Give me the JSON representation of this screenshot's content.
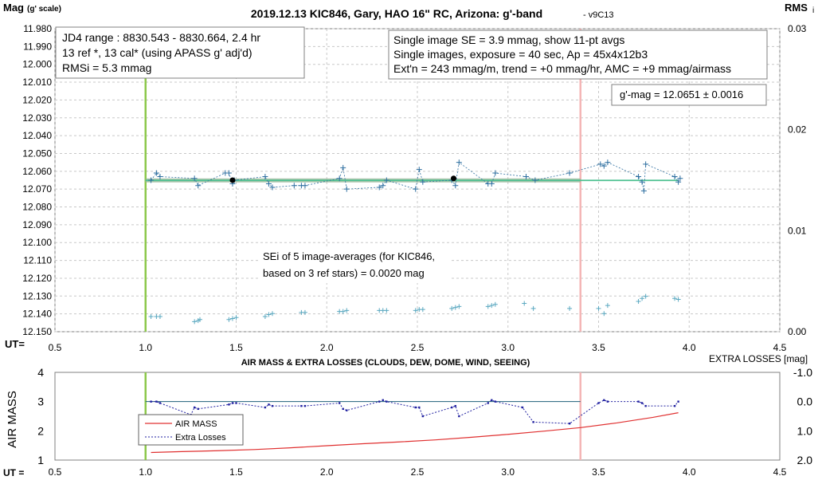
{
  "chart_data": [
    {
      "type": "scatter",
      "title": "2019.12.13 KIC846, Gary, HAO 16\" RC, Arizona: g'-band",
      "title_suffix": "- v9C13",
      "ylabel_left": "Mag",
      "ylabel_left_sub": "(g' scale)",
      "ylabel_right": "RMS",
      "ylabel_right_sub": "i",
      "xlabel": "UT=",
      "xlim": [
        0.5,
        4.5
      ],
      "x_ticks": [
        "0.5",
        "1.0",
        "1.5",
        "2.0",
        "2.5",
        "3.0",
        "3.5",
        "4.0",
        "4.5"
      ],
      "ylim": [
        12.15,
        11.98
      ],
      "y_ticks": [
        "11.980",
        "11.990",
        "12.000",
        "12.010",
        "12.020",
        "12.030",
        "12.040",
        "12.050",
        "12.060",
        "12.070",
        "12.080",
        "12.090",
        "12.100",
        "12.110",
        "12.120",
        "12.130",
        "12.140",
        "12.150"
      ],
      "y2lim": [
        0.0,
        0.03
      ],
      "y2_ticks": [
        "0.00",
        "0.01",
        "0.02",
        "0.03"
      ],
      "grid": true,
      "vertical_lines": [
        {
          "x": 1.0,
          "color": "#8cc84b"
        },
        {
          "x": 3.4,
          "color": "#f4b6b6"
        }
      ],
      "fit_line": {
        "x": [
          1.0,
          3.4
        ],
        "y": [
          12.0651,
          12.0651
        ],
        "color": "#9ab89a"
      },
      "mean_line": {
        "x": [
          1.0,
          3.94
        ],
        "y": [
          12.0651,
          12.0651
        ],
        "color": "#4cc090"
      },
      "series": [
        {
          "label": "single images",
          "color": "#2e6fa0",
          "x": [
            1.03,
            1.06,
            1.08,
            1.27,
            1.29,
            1.44,
            1.46,
            1.48,
            1.49,
            1.66,
            1.68,
            1.7,
            1.82,
            1.86,
            1.88,
            2.07,
            2.09,
            2.11,
            2.29,
            2.31,
            2.33,
            2.49,
            2.51,
            2.53,
            2.69,
            2.71,
            2.73,
            2.89,
            2.91,
            2.93,
            3.1,
            3.15,
            3.34,
            3.51,
            3.53,
            3.55,
            3.72,
            3.74,
            3.75,
            3.76,
            3.92,
            3.94,
            3.95
          ],
          "y": [
            12.065,
            12.061,
            12.063,
            12.064,
            12.068,
            12.061,
            12.061,
            12.067,
            12.065,
            12.063,
            12.067,
            12.069,
            12.068,
            12.068,
            12.068,
            12.064,
            12.058,
            12.07,
            12.069,
            12.068,
            12.065,
            12.07,
            12.059,
            12.066,
            12.065,
            12.068,
            12.055,
            12.067,
            12.067,
            12.061,
            12.063,
            12.065,
            12.061,
            12.056,
            12.057,
            12.055,
            12.063,
            12.066,
            12.071,
            12.056,
            12.063,
            12.066,
            12.064
          ]
        },
        {
          "label": "11-pt avgs",
          "color": "#000000",
          "x": [
            1.48,
            2.7
          ],
          "y": [
            12.065,
            12.064
          ]
        },
        {
          "label": "RMSi",
          "color": "#5aa8c0",
          "axis": "right",
          "x": [
            1.03,
            1.06,
            1.08,
            1.27,
            1.29,
            1.3,
            1.46,
            1.48,
            1.5,
            1.66,
            1.68,
            1.7,
            1.86,
            1.88,
            2.07,
            2.09,
            2.11,
            2.29,
            2.31,
            2.33,
            2.49,
            2.51,
            2.53,
            2.69,
            2.71,
            2.73,
            2.89,
            2.91,
            2.93,
            3.09,
            3.14,
            3.34,
            3.5,
            3.53,
            3.55,
            3.72,
            3.74,
            3.76,
            3.92,
            3.94
          ],
          "y": [
            0.0015,
            0.0015,
            0.0015,
            0.001,
            0.0011,
            0.0012,
            0.0012,
            0.0013,
            0.0014,
            0.0015,
            0.0017,
            0.0018,
            0.0019,
            0.0019,
            0.002,
            0.002,
            0.0021,
            0.0021,
            0.0021,
            0.0021,
            0.0021,
            0.0022,
            0.0022,
            0.0023,
            0.0024,
            0.0025,
            0.0025,
            0.0026,
            0.0027,
            0.0028,
            0.0023,
            0.0023,
            0.0023,
            0.0018,
            0.0026,
            0.003,
            0.0033,
            0.0035,
            0.0033,
            0.0032
          ]
        }
      ],
      "annotations": {
        "jd4": [
          "JD4 range : 8830.543 - 8830.664,  2.4  hr",
          "13 ref *, 13 cal* (using APASS g' adj'd)",
          "RMSi = 5.3 mmag"
        ],
        "se": [
          "Single image SE = 3.9 mmag, show  11-pt avgs",
          "Single images, exposure = 40 sec, Ap = 45x4x12b3",
          "Ext'n = 243 mmag/m, trend =  +0 mmag/hr, AMC = +9 mmag/airmass"
        ],
        "gmag": "g'-mag = 12.0651 ± 0.0016",
        "sei": [
          "SEi of 5 image-averages (for KIC846,",
          "based on 3 ref stars) = 0.0020 mag"
        ]
      }
    },
    {
      "type": "line",
      "title": "AIR MASS & EXTRA LOSSES (CLOUDS, DEW, DOME, WIND, SEEING)",
      "ylabel_left": "AIR MASS",
      "ylabel_right": "EXTRA LOSSES [mag]",
      "xlabel": "UT =",
      "xlim": [
        0.5,
        4.5
      ],
      "x_ticks": [
        "0.5",
        "1.0",
        "1.5",
        "2.0",
        "2.5",
        "3.0",
        "3.5",
        "4.0",
        "4.5"
      ],
      "ylim": [
        1,
        4
      ],
      "y_ticks": [
        "1",
        "2",
        "3",
        "4"
      ],
      "y2lim": [
        2.0,
        -1.0
      ],
      "y2_ticks": [
        "-1.0",
        "0.0",
        "1.0",
        "2.0"
      ],
      "vertical_lines": [
        {
          "x": 1.0,
          "color": "#8cc84b"
        },
        {
          "x": 3.4,
          "color": "#f4b6b6"
        }
      ],
      "reference_line": {
        "x": [
          1.0,
          3.4
        ],
        "y2": [
          0.0,
          0.0
        ],
        "color": "#1f5f7a"
      },
      "series": [
        {
          "name": "AIR MASS",
          "color": "#e03030",
          "axis": "left",
          "x": [
            1.03,
            1.2,
            1.4,
            1.6,
            1.8,
            2.0,
            2.2,
            2.4,
            2.6,
            2.8,
            3.0,
            3.2,
            3.4,
            3.6,
            3.8,
            3.94
          ],
          "y": [
            1.26,
            1.29,
            1.32,
            1.36,
            1.42,
            1.49,
            1.56,
            1.62,
            1.69,
            1.78,
            1.88,
            1.99,
            2.11,
            2.27,
            2.46,
            2.62
          ]
        },
        {
          "name": "Extra Losses",
          "color": "#2020a0",
          "axis": "right",
          "x": [
            1.03,
            1.06,
            1.08,
            1.25,
            1.27,
            1.29,
            1.46,
            1.48,
            1.5,
            1.66,
            1.68,
            1.7,
            1.86,
            1.88,
            2.07,
            2.09,
            2.11,
            2.29,
            2.31,
            2.33,
            2.49,
            2.51,
            2.53,
            2.69,
            2.71,
            2.73,
            2.89,
            2.91,
            2.93,
            3.08,
            3.14,
            3.34,
            3.5,
            3.53,
            3.55,
            3.72,
            3.74,
            3.76,
            3.92,
            3.94
          ],
          "y": [
            0.0,
            0.0,
            0.05,
            0.45,
            0.2,
            0.25,
            0.1,
            0.05,
            0.05,
            0.2,
            0.1,
            0.15,
            0.15,
            0.15,
            0.05,
            0.25,
            0.3,
            0.0,
            -0.05,
            0.0,
            0.2,
            0.2,
            0.5,
            0.2,
            0.15,
            0.5,
            0.05,
            -0.05,
            0.0,
            0.2,
            0.7,
            0.75,
            0.05,
            -0.05,
            0.0,
            0.0,
            0.05,
            0.15,
            0.15,
            0.0
          ]
        }
      ]
    }
  ]
}
